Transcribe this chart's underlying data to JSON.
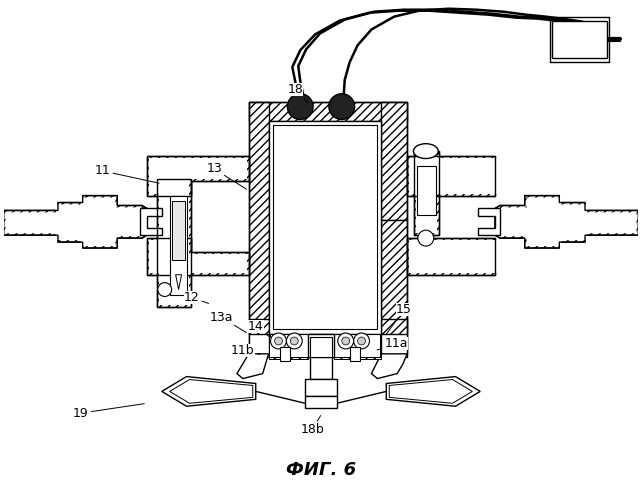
{
  "title": "ФИГ. 6",
  "title_fontsize": 13,
  "background_color": "#ffffff",
  "line_color": "#000000",
  "figsize": [
    6.42,
    5.0
  ],
  "dpi": 100,
  "label_positions": {
    "18": [
      295,
      88,
      310,
      103
    ],
    "13": [
      213,
      168,
      248,
      190
    ],
    "11": [
      100,
      170,
      160,
      183
    ],
    "12": [
      190,
      298,
      210,
      305
    ],
    "13a": [
      220,
      318,
      248,
      335
    ],
    "14": [
      255,
      327,
      272,
      340
    ],
    "11b": [
      242,
      352,
      262,
      356
    ],
    "15": [
      405,
      310,
      385,
      338
    ],
    "11a": [
      397,
      345,
      375,
      352
    ],
    "18b": [
      312,
      432,
      322,
      415
    ],
    "19": [
      78,
      415,
      145,
      405
    ]
  }
}
